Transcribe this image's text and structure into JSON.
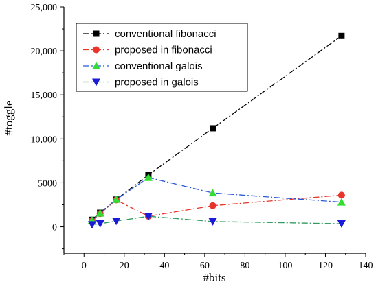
{
  "chart_data": {
    "type": "line",
    "xlabel": "#bits",
    "ylabel": "#toggle",
    "xlim": [
      -10,
      140
    ],
    "ylim": [
      -3000,
      25000
    ],
    "x_ticks": [
      0,
      20,
      40,
      60,
      80,
      100,
      120,
      140
    ],
    "x_tick_labels": [
      "0",
      "20",
      "40",
      "60",
      "80",
      "100",
      "120",
      "140"
    ],
    "y_ticks": [
      0,
      5000,
      10000,
      15000,
      20000,
      25000
    ],
    "y_tick_labels": [
      "0",
      "5000",
      "10,000",
      "15,000",
      "20,000",
      "25,000"
    ],
    "grid": false,
    "legend_position": "top-left",
    "x": [
      4,
      8,
      16,
      32,
      64,
      128
    ],
    "series": [
      {
        "name": "conventional fibonacci",
        "values": [
          800,
          1600,
          3100,
          5900,
          11200,
          21700
        ],
        "color": "#000000",
        "marker": "square"
      },
      {
        "name": "proposed in fibonacci",
        "values": [
          700,
          1500,
          3050,
          1200,
          2400,
          3600
        ],
        "color": "#e8342b",
        "marker": "circle"
      },
      {
        "name": "conventional galois",
        "values": [
          750,
          1550,
          3100,
          5600,
          3850,
          2800
        ],
        "color": "#2857d6",
        "marker": "triangle-up",
        "marker_color": "#33dd33"
      },
      {
        "name": "proposed in galois",
        "values": [
          250,
          350,
          650,
          1200,
          600,
          350
        ],
        "color": "#2e9b5c",
        "marker": "triangle-down",
        "marker_color": "#1a1ad8"
      }
    ]
  }
}
